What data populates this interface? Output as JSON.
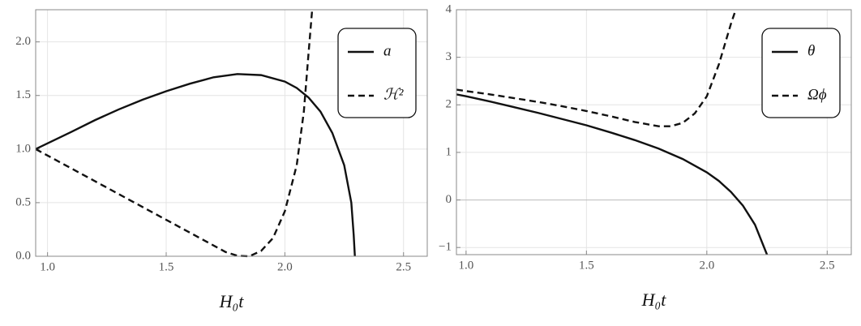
{
  "chart_data": [
    {
      "type": "line",
      "xlabel": "H₀t",
      "xlim": [
        0.95,
        2.6
      ],
      "ylim": [
        0,
        2.3
      ],
      "xticks": [
        {
          "value": 1.0,
          "label": "1.0"
        },
        1.5,
        {
          "value": 2.0,
          "label": "2.0"
        },
        2.5
      ],
      "yticks": [
        {
          "value": 0.0,
          "label": "0.0"
        },
        0.5,
        {
          "value": 1.0,
          "label": "1.0"
        },
        1.5,
        {
          "value": 2.0,
          "label": "2.0"
        }
      ],
      "grid": true,
      "legend": "upper right",
      "series": [
        {
          "name": "a",
          "color": "#111111",
          "linestyle": "solid",
          "x": [
            0.95,
            1.1,
            1.2,
            1.3,
            1.4,
            1.5,
            1.6,
            1.7,
            1.8,
            1.9,
            2.0,
            2.05,
            2.1,
            2.15,
            2.2,
            2.25,
            2.28,
            2.29,
            2.295
          ],
          "values": [
            1.0,
            1.16,
            1.27,
            1.37,
            1.46,
            1.54,
            1.61,
            1.67,
            1.7,
            1.69,
            1.63,
            1.57,
            1.48,
            1.35,
            1.15,
            0.85,
            0.5,
            0.2,
            0
          ]
        },
        {
          "name": "ℋ²",
          "color": "#111111",
          "linestyle": "dashed",
          "x": [
            0.95,
            1.1,
            1.2,
            1.3,
            1.4,
            1.5,
            1.6,
            1.7,
            1.75,
            1.8,
            1.85,
            1.9,
            1.95,
            2.0,
            2.05,
            2.08,
            2.1,
            2.115
          ],
          "values": [
            1.0,
            0.82,
            0.7,
            0.58,
            0.46,
            0.34,
            0.22,
            0.1,
            0.04,
            0.005,
            0.0,
            0.05,
            0.17,
            0.42,
            0.85,
            1.35,
            1.9,
            2.3
          ]
        }
      ]
    },
    {
      "type": "line",
      "xlabel": "H₀t",
      "xlim": [
        0.96,
        2.6
      ],
      "ylim": [
        -1.15,
        4
      ],
      "xticks": [
        {
          "value": 1.0,
          "label": "1.0"
        },
        1.5,
        {
          "value": 2.0,
          "label": "2.0"
        },
        2.5
      ],
      "yticks": [
        {
          "value": -1,
          "label": "−1"
        },
        0,
        1,
        2,
        3,
        4
      ],
      "grid": true,
      "legend": "upper right",
      "series": [
        {
          "name": "θ",
          "color": "#111111",
          "linestyle": "solid",
          "x": [
            0.96,
            1.0,
            1.1,
            1.2,
            1.3,
            1.4,
            1.5,
            1.6,
            1.7,
            1.8,
            1.9,
            2.0,
            2.05,
            2.1,
            2.15,
            2.2,
            2.25
          ],
          "values": [
            2.22,
            2.18,
            2.07,
            1.95,
            1.83,
            1.7,
            1.57,
            1.42,
            1.26,
            1.08,
            0.86,
            0.58,
            0.4,
            0.17,
            -0.12,
            -0.52,
            -1.15
          ]
        },
        {
          "name": "Ωϕ",
          "color": "#111111",
          "linestyle": "dashed",
          "x": [
            0.96,
            1.0,
            1.1,
            1.2,
            1.3,
            1.4,
            1.5,
            1.6,
            1.7,
            1.8,
            1.85,
            1.9,
            1.95,
            2.0,
            2.05,
            2.1,
            2.12
          ],
          "values": [
            2.32,
            2.29,
            2.22,
            2.14,
            2.06,
            1.97,
            1.87,
            1.76,
            1.64,
            1.55,
            1.55,
            1.62,
            1.82,
            2.18,
            2.85,
            3.7,
            4.0
          ]
        }
      ]
    }
  ]
}
